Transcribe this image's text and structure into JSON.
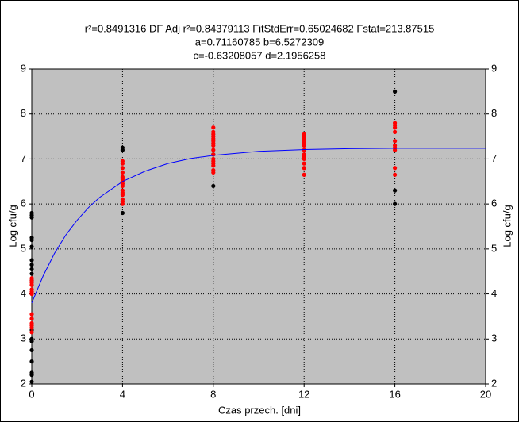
{
  "chart_data": {
    "type": "scatter",
    "title": [
      "r²=0.8491316  DF Adj r²=0.84379113  FitStdErr=0.65024682  Fstat=213.87515",
      "a=0.71160785 b=6.5272309",
      "c=-0.63208057 d=2.1956258"
    ],
    "xlabel": "Czas przech. [dni]",
    "ylabel": "Log cfu/g",
    "y2label": "Log cfu/g",
    "xlim": [
      0,
      20
    ],
    "xticks": [
      0,
      4,
      8,
      12,
      16,
      20
    ],
    "ylim": [
      2,
      9
    ],
    "yticks": [
      2,
      3,
      4,
      5,
      6,
      7,
      8,
      9
    ],
    "y2lim": [
      2,
      9
    ],
    "y2ticks": [
      2,
      3,
      4,
      5,
      6,
      7,
      8,
      9
    ],
    "grid": true,
    "series": [
      {
        "color": "#000000",
        "x": [
          0,
          0,
          0,
          0,
          0,
          0,
          0,
          0,
          0,
          0,
          0,
          0,
          0,
          0,
          0,
          0,
          0,
          0,
          0,
          4,
          4,
          4,
          8,
          8,
          16,
          16,
          16
        ],
        "y": [
          5.8,
          5.75,
          5.7,
          5.25,
          5.2,
          5.05,
          4.75,
          4.65,
          4.55,
          4.45,
          4.3,
          3.2,
          3.0,
          2.95,
          2.75,
          2.5,
          2.25,
          2.2,
          2.05,
          7.25,
          7.2,
          5.8,
          7.1,
          6.4,
          8.5,
          6.3,
          6.0
        ]
      },
      {
        "color": "#ff0000",
        "x": [
          0,
          0,
          0,
          0,
          0,
          0,
          0,
          0,
          0,
          0,
          0,
          0,
          0,
          4,
          4,
          4,
          4,
          4,
          4,
          4,
          4,
          4,
          4,
          4,
          4,
          4,
          4,
          4,
          8,
          8,
          8,
          8,
          8,
          8,
          8,
          8,
          8,
          8,
          8,
          8,
          8,
          8,
          8,
          8,
          12,
          12,
          12,
          12,
          12,
          12,
          12,
          12,
          12,
          12,
          12,
          12,
          12,
          16,
          16,
          16,
          16,
          16,
          16,
          16,
          16,
          16,
          16
        ],
        "y": [
          4.35,
          4.3,
          4.25,
          4.2,
          4.1,
          4.05,
          4.0,
          3.55,
          3.45,
          3.35,
          3.3,
          3.25,
          3.15,
          6.95,
          6.9,
          6.8,
          6.7,
          6.6,
          6.55,
          6.5,
          6.45,
          6.4,
          6.3,
          6.25,
          6.2,
          6.1,
          6.05,
          6.0,
          7.7,
          7.6,
          7.55,
          7.5,
          7.45,
          7.4,
          7.35,
          7.3,
          7.2,
          7.1,
          7.0,
          6.95,
          6.9,
          6.85,
          6.75,
          6.7,
          7.55,
          7.5,
          7.45,
          7.4,
          7.35,
          7.3,
          7.2,
          7.1,
          7.05,
          7.0,
          6.9,
          6.8,
          6.65,
          7.8,
          7.75,
          7.7,
          7.6,
          7.4,
          7.3,
          7.25,
          7.2,
          6.8,
          6.65
        ]
      }
    ],
    "curve": {
      "color": "#0000ff",
      "x": [
        0,
        0.5,
        1,
        1.5,
        2,
        2.5,
        3,
        4,
        5,
        6,
        7,
        8,
        10,
        12,
        14,
        16,
        18,
        20
      ],
      "y": [
        3.8,
        4.4,
        4.9,
        5.31,
        5.64,
        5.92,
        6.15,
        6.5,
        6.73,
        6.9,
        7.01,
        7.08,
        7.17,
        7.21,
        7.23,
        7.24,
        7.24,
        7.24
      ]
    }
  }
}
